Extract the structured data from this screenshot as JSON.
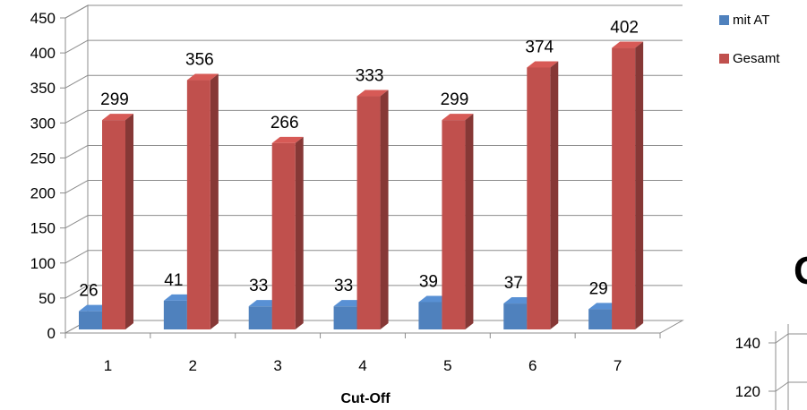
{
  "chart_data": [
    {
      "type": "bar",
      "style": "3d-clustered-column",
      "categories": [
        "1",
        "2",
        "3",
        "4",
        "5",
        "6",
        "7"
      ],
      "series": [
        {
          "name": "mit AT",
          "color": "#4F81BD",
          "values": [
            26,
            41,
            33,
            33,
            39,
            37,
            29
          ]
        },
        {
          "name": "Gesamt",
          "color": "#C0504D",
          "values": [
            299,
            356,
            266,
            333,
            299,
            374,
            402
          ]
        }
      ],
      "title": "",
      "xlabel": "Cut-Off",
      "ylabel": "",
      "ylim": [
        0,
        450
      ],
      "yticks": [
        0,
        50,
        100,
        150,
        200,
        250,
        300,
        350,
        400,
        450
      ],
      "grid": true,
      "legend": "right"
    },
    {
      "type": "bar",
      "partial": true,
      "yticks": [
        120,
        140
      ],
      "glyph": "G"
    }
  ]
}
